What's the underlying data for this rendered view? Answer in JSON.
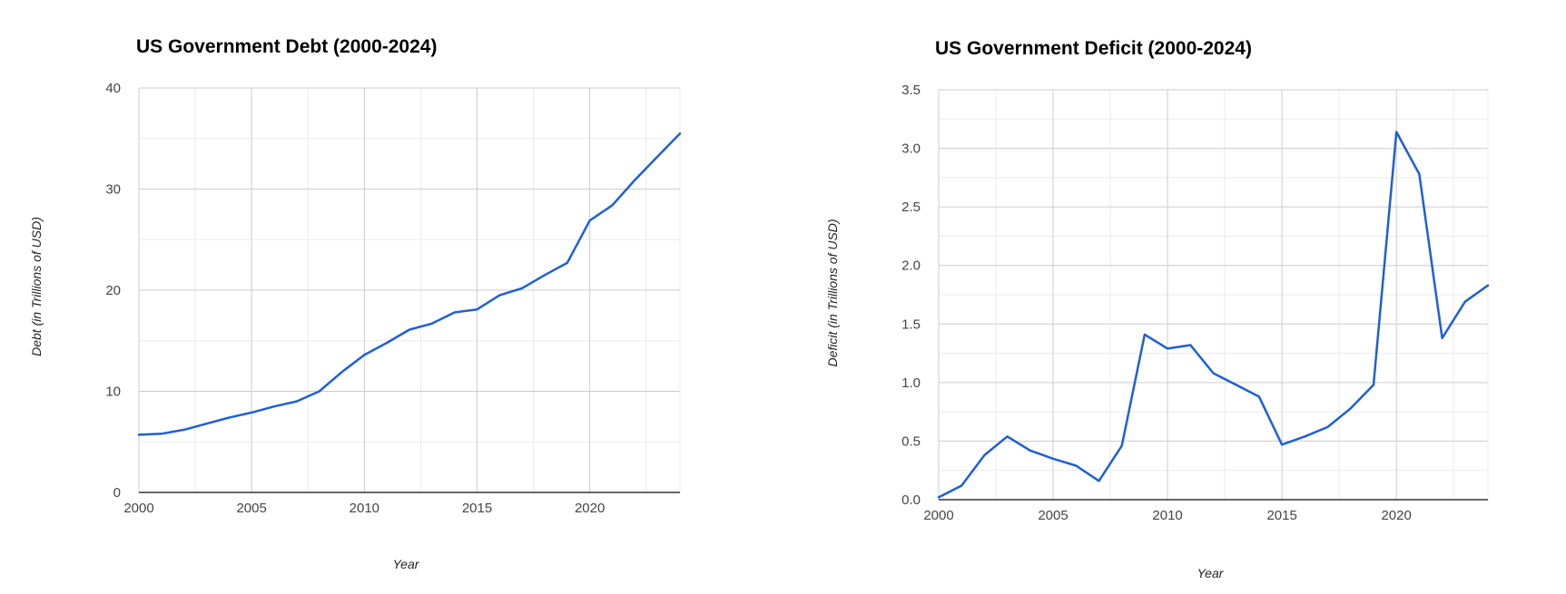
{
  "chart_data": [
    {
      "type": "line",
      "title": "US Government Debt (2000-2024)",
      "xlabel": "Year",
      "ylabel": "Debt (in Trillions of USD)",
      "xlim": [
        2000,
        2024
      ],
      "ylim": [
        0,
        40
      ],
      "xticks": [
        2000,
        2005,
        2010,
        2015,
        2020
      ],
      "xtick_labels": [
        "2000",
        "2005",
        "2010",
        "2015",
        "2020"
      ],
      "yticks": [
        0,
        10,
        20,
        30,
        40
      ],
      "ytick_labels": [
        "0",
        "10",
        "20",
        "30",
        "40"
      ],
      "grid": true,
      "legend": "none",
      "series": [
        {
          "name": "Debt",
          "color": "#1f5fd6",
          "x": [
            2000,
            2001,
            2002,
            2003,
            2004,
            2005,
            2006,
            2007,
            2008,
            2009,
            2010,
            2011,
            2012,
            2013,
            2014,
            2015,
            2016,
            2017,
            2018,
            2019,
            2020,
            2021,
            2022,
            2023,
            2024
          ],
          "values": [
            5.7,
            5.8,
            6.2,
            6.8,
            7.4,
            7.9,
            8.5,
            9.0,
            10.0,
            11.9,
            13.6,
            14.8,
            16.1,
            16.7,
            17.8,
            18.1,
            19.5,
            20.2,
            21.5,
            22.7,
            26.9,
            28.4,
            30.9,
            33.2,
            35.5
          ]
        }
      ]
    },
    {
      "type": "line",
      "title": "US Government Deficit (2000-2024)",
      "xlabel": "Year",
      "ylabel": "Deficit (in Trillions of USD)",
      "xlim": [
        2000,
        2024
      ],
      "ylim": [
        0,
        3.5
      ],
      "xticks": [
        2000,
        2005,
        2010,
        2015,
        2020
      ],
      "xtick_labels": [
        "2000",
        "2005",
        "2010",
        "2015",
        "2020"
      ],
      "yticks": [
        0,
        0.5,
        1.0,
        1.5,
        2.0,
        2.5,
        3.0,
        3.5
      ],
      "ytick_labels": [
        "0.0",
        "0.5",
        "1.0",
        "1.5",
        "2.0",
        "2.5",
        "3.0",
        "3.5"
      ],
      "grid": true,
      "legend": "none",
      "series": [
        {
          "name": "Deficit",
          "color": "#1f5fd6",
          "x": [
            2000,
            2001,
            2002,
            2003,
            2004,
            2005,
            2006,
            2007,
            2008,
            2009,
            2010,
            2011,
            2012,
            2013,
            2014,
            2015,
            2016,
            2017,
            2018,
            2019,
            2020,
            2021,
            2022,
            2023,
            2024
          ],
          "values": [
            0.02,
            0.12,
            0.38,
            0.54,
            0.42,
            0.35,
            0.29,
            0.16,
            0.46,
            1.41,
            1.29,
            1.32,
            1.08,
            0.98,
            0.88,
            0.47,
            0.54,
            0.62,
            0.78,
            0.98,
            3.14,
            2.78,
            1.38,
            1.69,
            1.83
          ]
        }
      ]
    }
  ]
}
